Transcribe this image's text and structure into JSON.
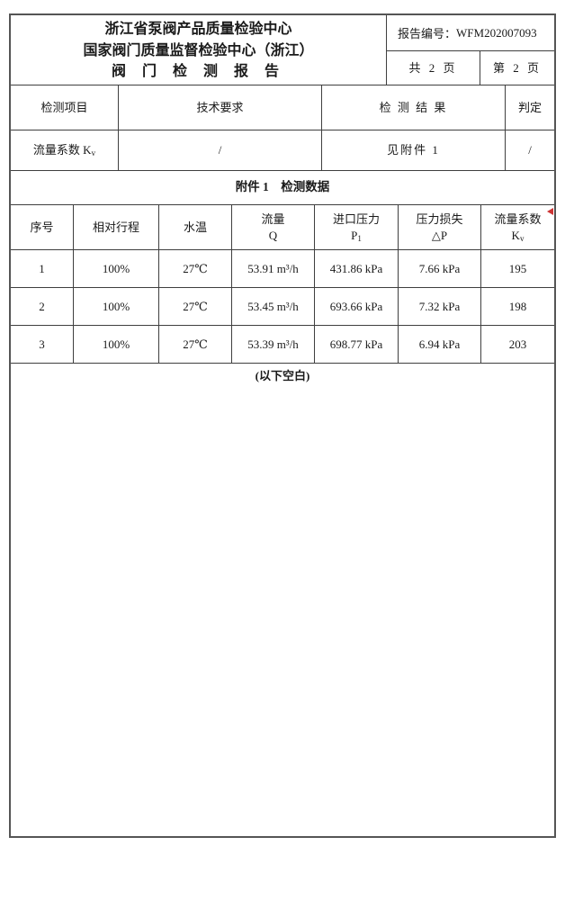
{
  "colors": {
    "outer_border": "#555555",
    "grid_line": "#3f3f3f",
    "text": "#1a1a1a",
    "corner_marker": "#cc3333"
  },
  "header": {
    "org_line1": "浙江省泵阀产品质量检验中心",
    "org_line2": "国家阀门质量监督检验中心（浙江）",
    "doc_title": "阀 门 检 测 报 告",
    "report_no_label": "报告编号：",
    "report_no_value": "WFM202007093",
    "total_pages": "共 2 页",
    "current_page": "第 2 页"
  },
  "summary": {
    "col_item": "检测项目",
    "col_requirement": "技术要求",
    "col_result": "检 测 结 果",
    "col_judgement": "判定",
    "row": {
      "item_main": "流量系数 K",
      "item_sub": "v",
      "requirement": "/",
      "result": "见附件 1",
      "judgement": "/"
    }
  },
  "attachment": {
    "title": "附件 1　检测数据",
    "columns": {
      "c1": "序号",
      "c2": "相对行程",
      "c3": "水温",
      "c4_line1": "流量",
      "c4_line2": "Q",
      "c5_line1": "进口压力",
      "c5_main": "P",
      "c5_sub": "1",
      "c6_line1": "压力损失",
      "c6_line2": "△P",
      "c7_line1": "流量系数",
      "c7_main": "K",
      "c7_sub": "v"
    },
    "rows": [
      {
        "no": "1",
        "stroke": "100%",
        "temp": "27℃",
        "flow": "53.91 m³/h",
        "inlet_pressure": "431.86 kPa",
        "pressure_loss": "7.66 kPa",
        "kv": "195"
      },
      {
        "no": "2",
        "stroke": "100%",
        "temp": "27℃",
        "flow": "53.45 m³/h",
        "inlet_pressure": "693.66 kPa",
        "pressure_loss": "7.32 kPa",
        "kv": "198"
      },
      {
        "no": "3",
        "stroke": "100%",
        "temp": "27℃",
        "flow": "53.39 m³/h",
        "inlet_pressure": "698.77 kPa",
        "pressure_loss": "6.94 kPa",
        "kv": "203"
      }
    ],
    "blank_note": "(以下空白)"
  }
}
